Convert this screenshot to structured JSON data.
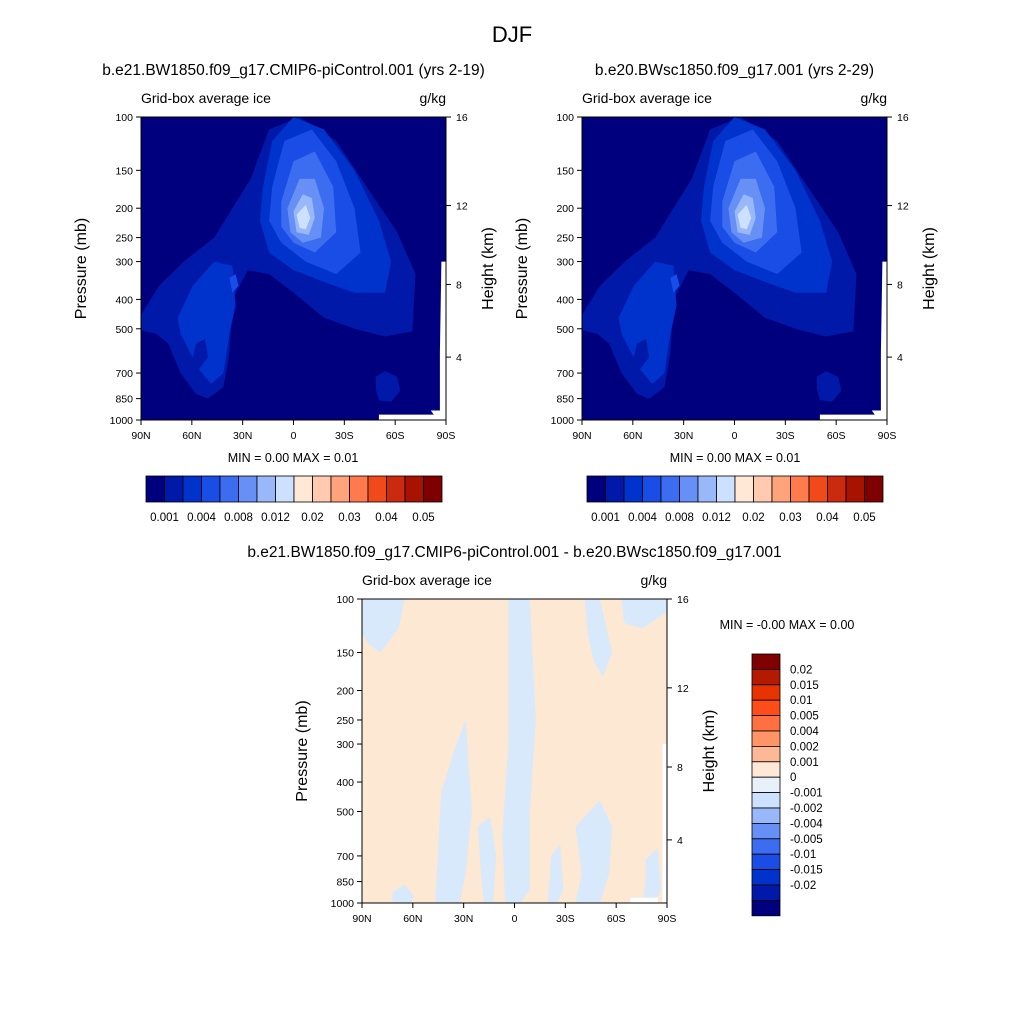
{
  "figure_title": "DJF",
  "chart_data": [
    {
      "type": "contour",
      "title": "b.e21.BW1850.f09_g17.CMIP6-piControl.001 (yrs 2-19)",
      "left_string": "Grid-box average ice",
      "right_string": "g/kg",
      "ylabel": "Pressure (mb)",
      "y2label": "Height (km)",
      "x_ticks": [
        "90N",
        "60N",
        "30N",
        "0",
        "30S",
        "60S",
        "90S"
      ],
      "y_ticks": [
        "100",
        "150",
        "200",
        "250",
        "300",
        "400",
        "500",
        "700",
        "850",
        "1000"
      ],
      "y2_ticks": [
        "16",
        "12",
        "8",
        "4"
      ],
      "min_max": "MIN =   0.00  MAX =   0.01",
      "colorbar_labels": [
        "0.001",
        "0.004",
        "0.008",
        "0.012",
        "0.02",
        "0.03",
        "0.04",
        "0.05"
      ],
      "colorbar_colors": [
        "#00007f",
        "#0019a8",
        "#0033cc",
        "#1a4de6",
        "#3c6cf0",
        "#6690f5",
        "#99b8fa",
        "#cce0ff",
        "#ffe8d6",
        "#ffcab0",
        "#ffa37a",
        "#ff7a4d",
        "#f04a1a",
        "#cc2a0f",
        "#a81200",
        "#7f0000"
      ]
    },
    {
      "type": "contour",
      "title": "b.e20.BWsc1850.f09_g17.001 (yrs 2-29)",
      "left_string": "Grid-box average ice",
      "right_string": "g/kg",
      "ylabel": "Pressure (mb)",
      "y2label": "Height (km)",
      "x_ticks": [
        "90N",
        "60N",
        "30N",
        "0",
        "30S",
        "60S",
        "90S"
      ],
      "y_ticks": [
        "100",
        "150",
        "200",
        "250",
        "300",
        "400",
        "500",
        "700",
        "850",
        "1000"
      ],
      "y2_ticks": [
        "16",
        "12",
        "8",
        "4"
      ],
      "min_max": "MIN =   0.00  MAX =   0.01",
      "colorbar_labels": [
        "0.001",
        "0.004",
        "0.008",
        "0.012",
        "0.02",
        "0.03",
        "0.04",
        "0.05"
      ],
      "colorbar_colors": [
        "#00007f",
        "#0019a8",
        "#0033cc",
        "#1a4de6",
        "#3c6cf0",
        "#6690f5",
        "#99b8fa",
        "#cce0ff",
        "#ffe8d6",
        "#ffcab0",
        "#ffa37a",
        "#ff7a4d",
        "#f04a1a",
        "#cc2a0f",
        "#a81200",
        "#7f0000"
      ]
    },
    {
      "type": "contour",
      "title": "b.e21.BW1850.f09_g17.CMIP6-piControl.001 - b.e20.BWsc1850.f09_g17.001",
      "left_string": "Grid-box average ice",
      "right_string": "g/kg",
      "ylabel": "Pressure (mb)",
      "y2label": "Height (km)",
      "x_ticks": [
        "90N",
        "60N",
        "30N",
        "0",
        "30S",
        "60S",
        "90S"
      ],
      "y_ticks": [
        "100",
        "150",
        "200",
        "250",
        "300",
        "400",
        "500",
        "700",
        "850",
        "1000"
      ],
      "y2_ticks": [
        "16",
        "12",
        "8",
        "4"
      ],
      "min_max": "MIN =  -0.00  MAX =   0.00",
      "colorbar_labels": [
        "0.02",
        "0.015",
        "0.01",
        "0.005",
        "0.004",
        "0.002",
        "0.001",
        "0",
        "-0.001",
        "-0.002",
        "-0.004",
        "-0.005",
        "-0.01",
        "-0.015",
        "-0.02"
      ],
      "colorbar_colors": [
        "#7f0000",
        "#b31a00",
        "#e63300",
        "#ff4d1a",
        "#ff7040",
        "#ff9466",
        "#ffb896",
        "#ffe8d6",
        "#e8f0fa",
        "#cce0ff",
        "#99b8fa",
        "#6690f5",
        "#3c6cf0",
        "#1a4de6",
        "#0033cc",
        "#0019a8",
        "#00007f"
      ]
    }
  ]
}
